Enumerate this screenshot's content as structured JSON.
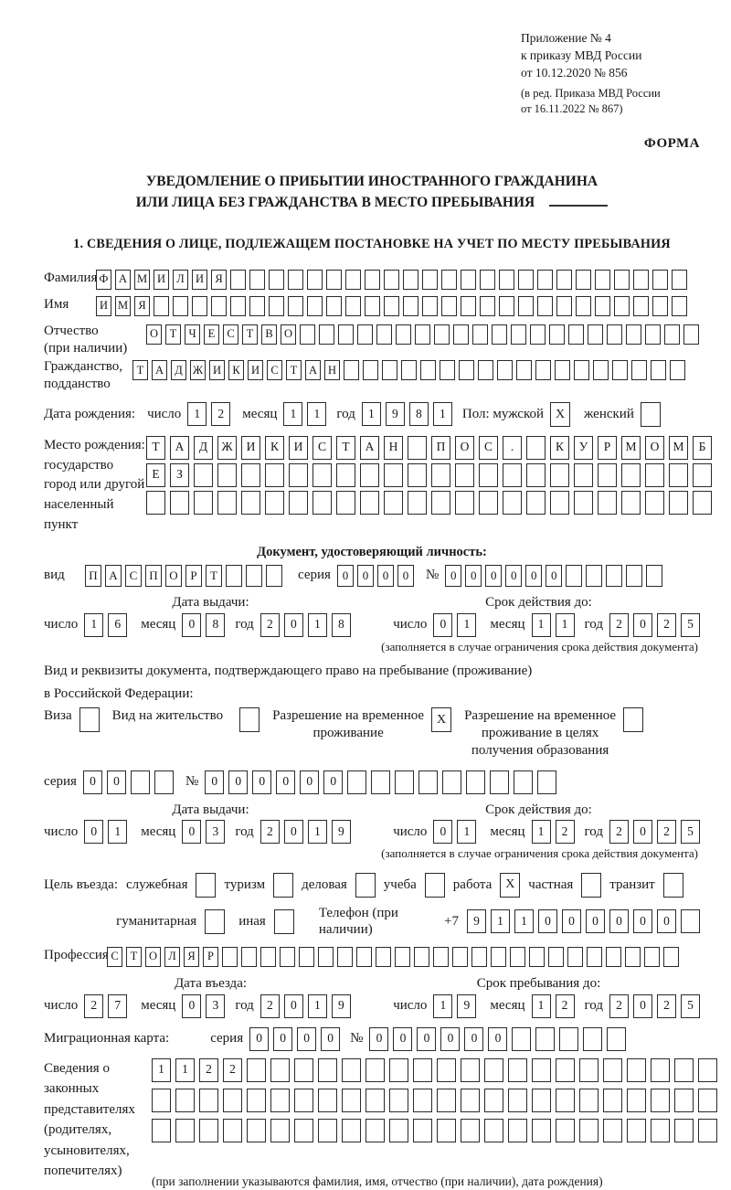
{
  "header": {
    "appendix_lines": [
      "Приложение № 4",
      "к приказу МВД России",
      "от 10.12.2020 № 856"
    ],
    "edition_lines": [
      "(в ред. Приказа МВД России",
      "от 16.11.2022 № 867)"
    ],
    "form_label": "ФОРМА"
  },
  "title": {
    "line1": "УВЕДОМЛЕНИЕ О ПРИБЫТИИ ИНОСТРАННОГО ГРАЖДАНИНА",
    "line2": "ИЛИ ЛИЦА БЕЗ ГРАЖДАНСТВА В МЕСТО ПРЕБЫВАНИЯ"
  },
  "section1": {
    "heading": "1. СВЕДЕНИЯ О ЛИЦЕ, ПОДЛЕЖАЩЕМ ПОСТАНОВКЕ НА УЧЕТ ПО МЕСТУ ПРЕБЫВАНИЯ"
  },
  "fields": {
    "surname": {
      "label": "Фамилия",
      "boxes": {
        "chars": "ФАМИЛИЯ",
        "total": 31
      }
    },
    "name": {
      "label": "Имя",
      "boxes": {
        "chars": "ИМЯ",
        "total": 31
      }
    },
    "patronymic": {
      "label1": "Отчество",
      "label2": "(при наличии)",
      "boxes": {
        "chars": "ОТЧЕСТВО",
        "total": 29
      }
    },
    "citizenship": {
      "label1": "Гражданство,",
      "label2": "подданство",
      "boxes": {
        "chars": "ТАДЖИКИСТАН",
        "total": 29
      }
    },
    "birth_date": {
      "label": "Дата рождения:",
      "day_label": "число",
      "day": {
        "chars": "12",
        "total": 2
      },
      "month_label": "месяц",
      "month": {
        "chars": "11",
        "total": 2
      },
      "year_label": "год",
      "year": {
        "chars": "1981",
        "total": 4
      },
      "sex_label": "Пол: мужской",
      "male_box": {
        "chars": "X",
        "total": 1
      },
      "female_label": "женский",
      "female_box": {
        "chars": "",
        "total": 1
      }
    },
    "birth_place": {
      "label1": "Место рождения:",
      "label2": "государство",
      "label3": "город или другой",
      "label4": "населенный пункт",
      "row1": {
        "chars": "ТАДЖИКИСТАН ПОС. КУРМОМБ",
        "total": 24
      },
      "row2": {
        "chars": "ЕЗ",
        "total": 24
      },
      "row3": {
        "chars": "",
        "total": 24
      }
    }
  },
  "identity_doc": {
    "heading": "Документ, удостоверяющий личность:",
    "kind_label": "вид",
    "kind": {
      "chars": "ПАСПОРТ",
      "total": 10
    },
    "series_label": "серия",
    "series": {
      "chars": "0000",
      "total": 4
    },
    "number_label": "№",
    "number": {
      "chars": "000000",
      "total": 11
    },
    "issue_caption": "Дата выдачи:",
    "valid_caption": "Срок действия до:",
    "issue": {
      "day_label": "число",
      "day": {
        "chars": "16",
        "total": 2
      },
      "month_label": "месяц",
      "month": {
        "chars": "08",
        "total": 2
      },
      "year_label": "год",
      "year": {
        "chars": "2018",
        "total": 4
      }
    },
    "valid": {
      "day_label": "число",
      "day": {
        "chars": "01",
        "total": 2
      },
      "month_label": "месяц",
      "month": {
        "chars": "11",
        "total": 2
      },
      "year_label": "год",
      "year": {
        "chars": "2025",
        "total": 4
      }
    },
    "note": "(заполняется в случае ограничения срока действия документа)"
  },
  "residence_doc": {
    "line1": "Вид и реквизиты документа, подтверждающего право на пребывание (проживание)",
    "line2": "в Российской Федерации:",
    "visa_label": "Виза",
    "visa_box": {
      "chars": "",
      "total": 1
    },
    "permit_label": "Вид на жительство",
    "permit_box": {
      "chars": "",
      "total": 1
    },
    "rvp_label1": "Разрешение на временное",
    "rvp_label2": "проживание",
    "rvp_box": {
      "chars": "X",
      "total": 1
    },
    "rvp_edu_label1": "Разрешение на временное",
    "rvp_edu_label2": "проживание в целях",
    "rvp_edu_label3": "получения образования",
    "rvp_edu_box": {
      "chars": "",
      "total": 1
    },
    "series_label": "серия",
    "series": {
      "chars": "00",
      "total": 4
    },
    "number_label": "№",
    "number": {
      "chars": "000000",
      "total": 15
    },
    "issue_caption": "Дата выдачи:",
    "valid_caption": "Срок действия до:",
    "issue": {
      "day_label": "число",
      "day": {
        "chars": "01",
        "total": 2
      },
      "month_label": "месяц",
      "month": {
        "chars": "03",
        "total": 2
      },
      "year_label": "год",
      "year": {
        "chars": "2019",
        "total": 4
      }
    },
    "valid": {
      "day_label": "число",
      "day": {
        "chars": "01",
        "total": 2
      },
      "month_label": "месяц",
      "month": {
        "chars": "12",
        "total": 2
      },
      "year_label": "год",
      "year": {
        "chars": "2025",
        "total": 4
      }
    },
    "note": "(заполняется в случае ограничения срока действия документа)"
  },
  "entry": {
    "purpose_label": "Цель въезда:",
    "opt1_label": "служебная",
    "opt1_box": {
      "chars": "",
      "total": 1
    },
    "opt2_label": "туризм",
    "opt2_box": {
      "chars": "",
      "total": 1
    },
    "opt3_label": "деловая",
    "opt3_box": {
      "chars": "",
      "total": 1
    },
    "opt4_label": "учеба",
    "opt4_box": {
      "chars": "",
      "total": 1
    },
    "opt5_label": "работа",
    "opt5_box": {
      "chars": "X",
      "total": 1
    },
    "opt6_label": "частная",
    "opt6_box": {
      "chars": "",
      "total": 1
    },
    "opt7_label": "транзит",
    "opt7_box": {
      "chars": "",
      "total": 1
    },
    "opt8_label": "гуманитарная",
    "opt8_box": {
      "chars": "",
      "total": 1
    },
    "opt9_label": "иная",
    "opt9_box": {
      "chars": "",
      "total": 1
    },
    "phone_label": "Телефон (при наличии)",
    "phone_prefix": "+7",
    "phone": {
      "chars": "911000000",
      "total": 10
    },
    "profession_label": "Профессия",
    "profession": {
      "chars": "СТОЛЯР",
      "total": 30
    },
    "entry_caption": "Дата въезда:",
    "stay_caption": "Срок пребывания до:",
    "entry_date": {
      "day_label": "число",
      "day": {
        "chars": "27",
        "total": 2
      },
      "month_label": "месяц",
      "month": {
        "chars": "03",
        "total": 2
      },
      "year_label": "год",
      "year": {
        "chars": "2019",
        "total": 4
      }
    },
    "stay_until": {
      "day_label": "число",
      "day": {
        "chars": "19",
        "total": 2
      },
      "month_label": "месяц",
      "month": {
        "chars": "12",
        "total": 2
      },
      "year_label": "год",
      "year": {
        "chars": "2025",
        "total": 4
      }
    }
  },
  "migration_card": {
    "label": "Миграционная карта:",
    "series_label": "серия",
    "series": {
      "chars": "0000",
      "total": 4
    },
    "number_label": "№",
    "number": {
      "chars": "000000",
      "total": 11
    }
  },
  "representatives": {
    "label1": "Сведения о",
    "label2": "законных",
    "label3": "представителях",
    "label4": "(родителях,",
    "label5": "усыновителях,",
    "label6": "попечителях)",
    "row1": {
      "chars": "1122",
      "total": 24
    },
    "row2": {
      "chars": "",
      "total": 24
    },
    "row3": {
      "chars": "",
      "total": 24
    },
    "note": "(при заполнении указываются фамилия, имя, отчество (при наличии), дата рождения)"
  }
}
